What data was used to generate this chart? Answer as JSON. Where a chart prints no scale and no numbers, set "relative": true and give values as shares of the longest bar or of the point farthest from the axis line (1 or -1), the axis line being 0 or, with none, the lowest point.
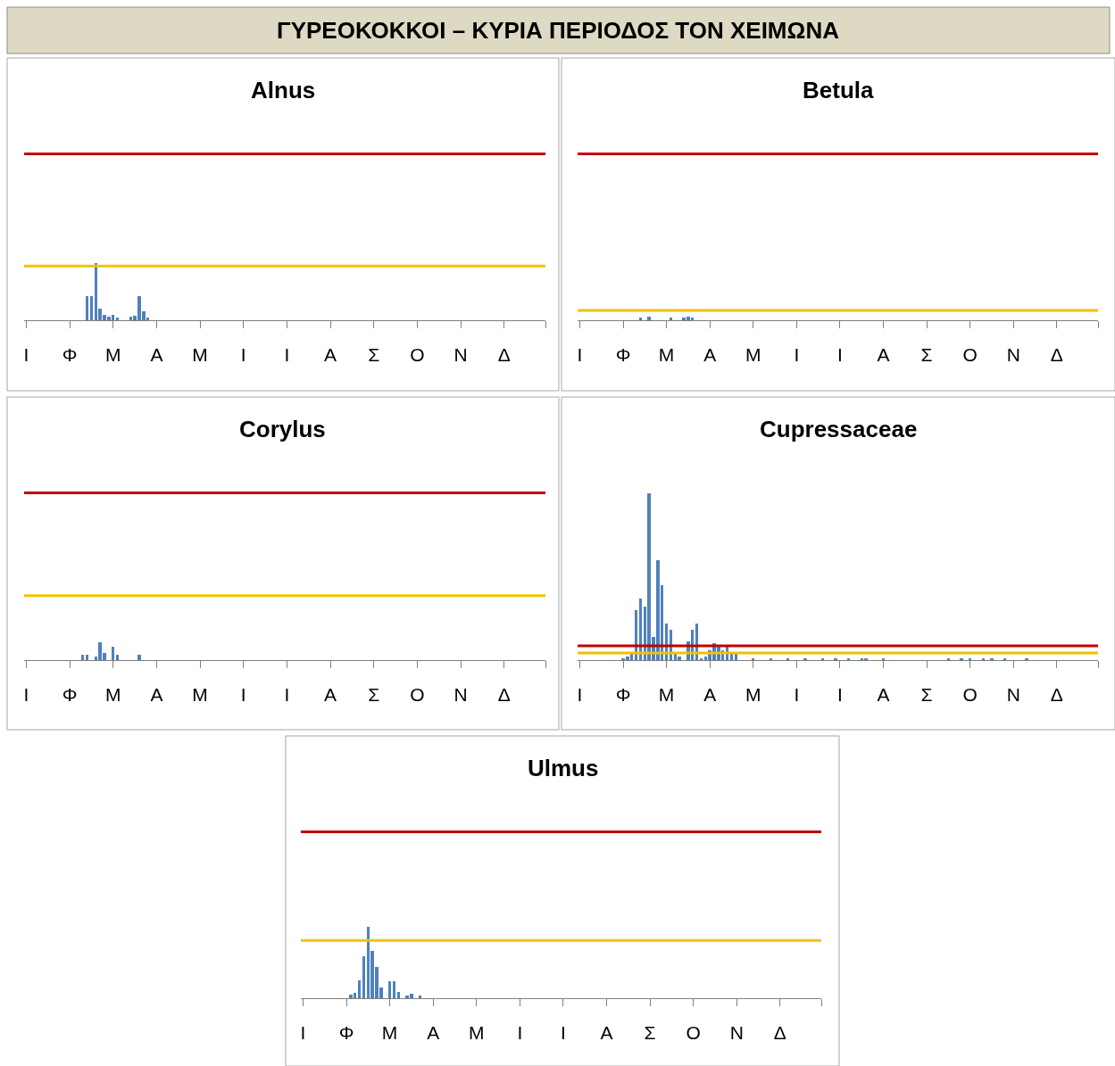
{
  "chart_data": [
    {
      "type": "other",
      "title": "ΓΥΡΕΟΚΟΚΚΟΙ – ΚΥΡΙΑ ΠΕΡΙΟΔΟΣ ΤΟΝ ΧΕΙΜΩΝΑ"
    },
    {
      "type": "bar",
      "title": "Alnus",
      "relative": true,
      "color": "#4f81bd",
      "categories": [
        "Ι",
        null,
        null,
        null,
        null,
        null,
        null,
        null,
        null,
        null,
        "Φ",
        null,
        null,
        null,
        null,
        null,
        null,
        null,
        null,
        null,
        "Μ",
        null,
        null,
        null,
        null,
        null,
        null,
        null,
        null,
        null,
        "Α",
        null,
        null,
        null,
        null,
        null,
        null,
        null,
        null,
        null,
        "Μ",
        null,
        null,
        null,
        null,
        null,
        null,
        null,
        null,
        null,
        "Ι",
        null,
        null,
        null,
        null,
        null,
        null,
        null,
        null,
        null,
        "Ι",
        null,
        null,
        null,
        null,
        null,
        null,
        null,
        null,
        null,
        "Α",
        null,
        null,
        null,
        null,
        null,
        null,
        null,
        null,
        null,
        "Σ",
        null,
        null,
        null,
        null,
        null,
        null,
        null,
        null,
        null,
        "Ο",
        null,
        null,
        null,
        null,
        null,
        null,
        null,
        null,
        null,
        "Ν",
        null,
        null,
        null,
        null,
        null,
        null,
        null,
        null,
        null,
        "Δ",
        null,
        null,
        null,
        null,
        null,
        null,
        null,
        null,
        null
      ],
      "values": [
        null,
        null,
        null,
        null,
        null,
        null,
        null,
        null,
        null,
        null,
        null,
        null,
        null,
        null,
        0.42,
        0.42,
        1.0,
        0.2,
        0.1,
        0.07,
        0.1,
        0.05,
        null,
        null,
        0.06,
        0.08,
        0.42,
        0.15,
        0.05,
        null,
        null,
        null,
        null,
        null,
        null,
        null,
        null,
        null,
        null,
        null,
        null,
        null,
        null,
        null,
        null,
        null,
        null,
        null,
        null,
        null,
        null,
        null,
        null,
        null,
        null,
        null,
        null,
        null,
        null,
        null,
        null,
        null,
        null,
        null,
        null,
        null,
        null,
        null,
        null,
        null,
        null,
        null,
        null,
        null,
        null,
        null,
        null,
        null,
        null,
        null,
        null,
        null,
        null,
        null,
        null,
        null,
        null,
        null,
        null,
        null,
        null,
        null,
        null,
        null,
        null,
        null,
        null,
        null,
        null,
        null,
        null,
        null,
        null,
        null,
        null,
        null,
        null,
        null,
        null,
        null,
        null,
        null,
        null,
        null,
        null,
        null,
        null,
        null,
        null,
        null
      ],
      "ref_lines": [
        {
          "axis": "y",
          "value": 2.92,
          "color": "#c00000"
        },
        {
          "axis": "y",
          "value": 0.95,
          "color": "#f2c200"
        }
      ]
    },
    {
      "type": "bar",
      "title": "Betula",
      "relative": true,
      "color": "#4f81bd",
      "categories": [
        "Ι",
        null,
        null,
        null,
        null,
        null,
        null,
        null,
        null,
        null,
        "Φ",
        null,
        null,
        null,
        null,
        null,
        null,
        null,
        null,
        null,
        "Μ",
        null,
        null,
        null,
        null,
        null,
        null,
        null,
        null,
        null,
        "Α",
        null,
        null,
        null,
        null,
        null,
        null,
        null,
        null,
        null,
        "Μ",
        null,
        null,
        null,
        null,
        null,
        null,
        null,
        null,
        null,
        "Ι",
        null,
        null,
        null,
        null,
        null,
        null,
        null,
        null,
        null,
        "Ι",
        null,
        null,
        null,
        null,
        null,
        null,
        null,
        null,
        null,
        "Α",
        null,
        null,
        null,
        null,
        null,
        null,
        null,
        null,
        null,
        "Σ",
        null,
        null,
        null,
        null,
        null,
        null,
        null,
        null,
        null,
        "Ο",
        null,
        null,
        null,
        null,
        null,
        null,
        null,
        null,
        null,
        "Ν",
        null,
        null,
        null,
        null,
        null,
        null,
        null,
        null,
        null,
        "Δ",
        null,
        null,
        null,
        null,
        null,
        null,
        null,
        null,
        null
      ],
      "values": [
        null,
        null,
        null,
        null,
        null,
        null,
        null,
        null,
        null,
        null,
        null,
        null,
        null,
        null,
        0.7,
        null,
        1.0,
        null,
        null,
        null,
        null,
        0.8,
        null,
        null,
        0.8,
        1.0,
        0.8,
        null,
        null,
        null,
        null,
        null,
        null,
        null,
        null,
        null,
        null,
        null,
        null,
        null,
        null,
        null,
        null,
        null,
        null,
        null,
        null,
        null,
        null,
        null,
        null,
        null,
        null,
        null,
        null,
        null,
        null,
        null,
        null,
        null,
        null,
        null,
        null,
        null,
        null,
        null,
        null,
        null,
        null,
        null,
        null,
        null,
        null,
        null,
        null,
        null,
        null,
        null,
        null,
        null,
        null,
        null,
        null,
        null,
        null,
        null,
        null,
        null,
        null,
        null,
        null,
        null,
        null,
        null,
        null,
        null,
        null,
        null,
        null,
        null,
        null,
        null,
        null,
        null,
        null,
        null,
        null,
        null,
        null,
        null,
        null,
        null,
        null,
        null,
        null,
        null,
        null,
        null,
        null,
        null
      ],
      "ref_lines": [
        {
          "axis": "y",
          "value": 46.65,
          "color": "#c00000"
        },
        {
          "axis": "y",
          "value": 2.75,
          "color": "#f2c200"
        }
      ]
    },
    {
      "type": "bar",
      "title": "Corylus",
      "relative": true,
      "color": "#4f81bd",
      "categories": [
        "Ι",
        null,
        null,
        null,
        null,
        null,
        null,
        null,
        null,
        null,
        "Φ",
        null,
        null,
        null,
        null,
        null,
        null,
        null,
        null,
        null,
        "Μ",
        null,
        null,
        null,
        null,
        null,
        null,
        null,
        null,
        null,
        "Α",
        null,
        null,
        null,
        null,
        null,
        null,
        null,
        null,
        null,
        "Μ",
        null,
        null,
        null,
        null,
        null,
        null,
        null,
        null,
        null,
        "Ι",
        null,
        null,
        null,
        null,
        null,
        null,
        null,
        null,
        null,
        "Ι",
        null,
        null,
        null,
        null,
        null,
        null,
        null,
        null,
        null,
        "Α",
        null,
        null,
        null,
        null,
        null,
        null,
        null,
        null,
        null,
        "Σ",
        null,
        null,
        null,
        null,
        null,
        null,
        null,
        null,
        null,
        "Ο",
        null,
        null,
        null,
        null,
        null,
        null,
        null,
        null,
        null,
        "Ν",
        null,
        null,
        null,
        null,
        null,
        null,
        null,
        null,
        null,
        "Δ",
        null,
        null,
        null,
        null,
        null,
        null,
        null,
        null,
        null
      ],
      "values": [
        null,
        null,
        null,
        null,
        null,
        null,
        null,
        null,
        null,
        null,
        null,
        null,
        null,
        0.3,
        0.3,
        null,
        0.2,
        1.0,
        0.4,
        null,
        0.75,
        0.3,
        null,
        null,
        null,
        null,
        0.3,
        null,
        null,
        null,
        null,
        null,
        null,
        null,
        null,
        null,
        null,
        null,
        null,
        null,
        null,
        null,
        null,
        null,
        null,
        null,
        null,
        null,
        null,
        null,
        null,
        null,
        null,
        null,
        null,
        null,
        null,
        null,
        null,
        null,
        null,
        null,
        null,
        null,
        null,
        null,
        null,
        null,
        null,
        null,
        null,
        null,
        null,
        null,
        null,
        null,
        null,
        null,
        null,
        null,
        null,
        null,
        null,
        null,
        null,
        null,
        null,
        null,
        null,
        null,
        null,
        null,
        null,
        null,
        null,
        null,
        null,
        null,
        null,
        null,
        null,
        null,
        null,
        null,
        null,
        null,
        null,
        null,
        null,
        null,
        null,
        null,
        null,
        null,
        null,
        null,
        null,
        null,
        null,
        null
      ],
      "ref_lines": [
        {
          "axis": "y",
          "value": 9.375,
          "color": "#c00000"
        },
        {
          "axis": "y",
          "value": 3.613,
          "color": "#f2c200"
        }
      ]
    },
    {
      "type": "bar",
      "title": "Cupressaceae",
      "relative": true,
      "color": "#4f81bd",
      "categories": [
        "Ι",
        null,
        null,
        null,
        null,
        null,
        null,
        null,
        null,
        null,
        "Φ",
        null,
        null,
        null,
        null,
        null,
        null,
        null,
        null,
        null,
        "Μ",
        null,
        null,
        null,
        null,
        null,
        null,
        null,
        null,
        null,
        "Α",
        null,
        null,
        null,
        null,
        null,
        null,
        null,
        null,
        null,
        "Μ",
        null,
        null,
        null,
        null,
        null,
        null,
        null,
        null,
        null,
        "Ι",
        null,
        null,
        null,
        null,
        null,
        null,
        null,
        null,
        null,
        "Ι",
        null,
        null,
        null,
        null,
        null,
        null,
        null,
        null,
        null,
        "Α",
        null,
        null,
        null,
        null,
        null,
        null,
        null,
        null,
        null,
        "Σ",
        null,
        null,
        null,
        null,
        null,
        null,
        null,
        null,
        null,
        "Ο",
        null,
        null,
        null,
        null,
        null,
        null,
        null,
        null,
        null,
        "Ν",
        null,
        null,
        null,
        null,
        null,
        null,
        null,
        null,
        null,
        "Δ",
        null,
        null,
        null,
        null,
        null,
        null,
        null,
        null,
        null
      ],
      "values": [
        null,
        null,
        null,
        null,
        null,
        null,
        null,
        null,
        null,
        null,
        0.01,
        0.02,
        0.04,
        0.3,
        0.37,
        0.32,
        1.0,
        0.14,
        0.6,
        0.45,
        0.22,
        0.18,
        0.04,
        0.02,
        null,
        0.11,
        0.18,
        0.22,
        0.01,
        0.02,
        0.06,
        0.1,
        0.08,
        0.06,
        0.08,
        0.04,
        0.035,
        null,
        null,
        null,
        0.01,
        null,
        null,
        null,
        0.01,
        null,
        null,
        null,
        0.01,
        null,
        null,
        null,
        0.01,
        null,
        null,
        null,
        0.01,
        null,
        null,
        0.01,
        null,
        null,
        0.01,
        null,
        null,
        0.01,
        0.01,
        null,
        null,
        null,
        0.01,
        null,
        null,
        null,
        null,
        null,
        null,
        null,
        null,
        null,
        null,
        null,
        null,
        null,
        null,
        0.01,
        null,
        null,
        0.01,
        null,
        0.01,
        null,
        null,
        0.01,
        null,
        0.01,
        null,
        null,
        0.01,
        null,
        null,
        null,
        null,
        0.01,
        null,
        null,
        null,
        null,
        null,
        null,
        null,
        null,
        null,
        null,
        null,
        null,
        null,
        null,
        null,
        null
      ],
      "ref_lines": [
        {
          "axis": "y",
          "value": 0.085,
          "color": "#c00000"
        },
        {
          "axis": "y",
          "value": 0.043,
          "color": "#f2c200"
        }
      ]
    },
    {
      "type": "bar",
      "title": "Ulmus",
      "relative": true,
      "color": "#4f81bd",
      "categories": [
        "Ι",
        null,
        null,
        null,
        null,
        null,
        null,
        null,
        null,
        null,
        "Φ",
        null,
        null,
        null,
        null,
        null,
        null,
        null,
        null,
        null,
        "Μ",
        null,
        null,
        null,
        null,
        null,
        null,
        null,
        null,
        null,
        "Α",
        null,
        null,
        null,
        null,
        null,
        null,
        null,
        null,
        null,
        "Μ",
        null,
        null,
        null,
        null,
        null,
        null,
        null,
        null,
        null,
        "Ι",
        null,
        null,
        null,
        null,
        null,
        null,
        null,
        null,
        null,
        "Ι",
        null,
        null,
        null,
        null,
        null,
        null,
        null,
        null,
        null,
        "Α",
        null,
        null,
        null,
        null,
        null,
        null,
        null,
        null,
        null,
        "Σ",
        null,
        null,
        null,
        null,
        null,
        null,
        null,
        null,
        null,
        "Ο",
        null,
        null,
        null,
        null,
        null,
        null,
        null,
        null,
        null,
        "Ν",
        null,
        null,
        null,
        null,
        null,
        null,
        null,
        null,
        null,
        "Δ",
        null,
        null,
        null,
        null,
        null,
        null,
        null,
        null,
        null
      ],
      "values": [
        null,
        null,
        null,
        null,
        null,
        null,
        null,
        null,
        null,
        null,
        null,
        0.05,
        0.07,
        0.25,
        0.59,
        1.0,
        0.66,
        0.44,
        0.15,
        null,
        0.24,
        0.24,
        0.09,
        null,
        0.04,
        0.06,
        null,
        0.04,
        null,
        null,
        null,
        null,
        null,
        null,
        null,
        null,
        null,
        null,
        null,
        null,
        null,
        null,
        null,
        null,
        null,
        null,
        null,
        null,
        null,
        null,
        null,
        null,
        null,
        null,
        null,
        null,
        null,
        null,
        null,
        null,
        null,
        null,
        null,
        null,
        null,
        null,
        null,
        null,
        null,
        null,
        null,
        null,
        null,
        null,
        null,
        null,
        null,
        null,
        null,
        null,
        null,
        null,
        null,
        null,
        null,
        null,
        null,
        null,
        null,
        null,
        null,
        null,
        null,
        null,
        null,
        null,
        null,
        null,
        null,
        null,
        null,
        null,
        null,
        null,
        null,
        null,
        null,
        null,
        null,
        null,
        null,
        null,
        null,
        null,
        null,
        null,
        null,
        null,
        null,
        null
      ],
      "ref_lines": [
        {
          "axis": "y",
          "value": 2.33,
          "color": "#c00000"
        },
        {
          "axis": "y",
          "value": 0.81,
          "color": "#f2c200"
        }
      ]
    }
  ]
}
